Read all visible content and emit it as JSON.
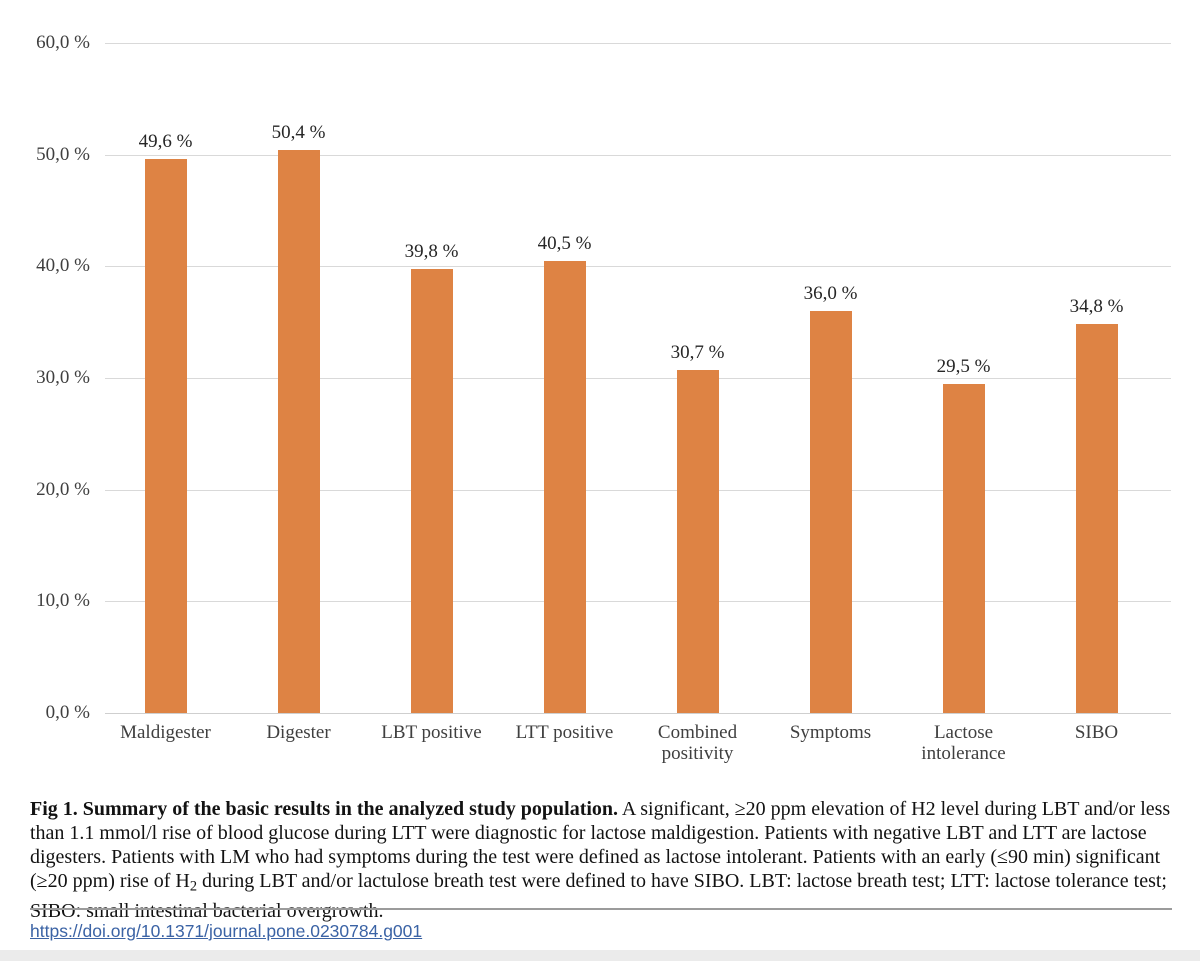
{
  "figure": {
    "caption": {
      "bold_label": "Fig 1. Summary of the basic results in the analyzed study population.",
      "text_before_sub": " A significant, ≥20 ppm elevation of H2 level during LBT and/or less than 1.1 mmol/l rise of blood glucose during LTT were diagnostic for lactose maldigestion. Patients with negative LBT and LTT are lactose digesters. Patients with LM who had symptoms during the test were defined as lactose intolerant. Patients with an early (≤90 min) significant (≥20 ppm) rise of H",
      "subscript": "2",
      "text_after_sub": " during LBT and/or lactulose breath test were defined to have SIBO. LBT: lactose breath test; LTT: lactose tolerance test; SIBO: small intestinal bacterial overgrowth."
    },
    "doi_link": "https://doi.org/10.1371/journal.pone.0230784.g001"
  },
  "chart_data": {
    "type": "bar",
    "title": "",
    "xlabel": "",
    "ylabel": "",
    "categories": [
      "Maldigester",
      "Digester",
      "LBT positive",
      "LTT positive",
      "Combined positivity",
      "Symptoms",
      "Lactose intolerance",
      "SIBO"
    ],
    "values": [
      49.6,
      50.4,
      39.8,
      40.5,
      30.7,
      36.0,
      29.5,
      34.8
    ],
    "value_labels": [
      "49,6 %",
      "50,4 %",
      "39,8 %",
      "40,5 %",
      "30,7 %",
      "36,0 %",
      "29,5 %",
      "34,8 %"
    ],
    "y_ticks": [
      0,
      10,
      20,
      30,
      40,
      50,
      60
    ],
    "y_tick_labels": [
      "0,0 %",
      "10,0 %",
      "20,0 %",
      "30,0 %",
      "40,0 %",
      "50,0 %",
      "60,0 %"
    ],
    "ylim": [
      0,
      60
    ],
    "grid": "horizontal",
    "legend": "none",
    "bar_color": "#de8344",
    "gridline_color": "#d9d9d9"
  }
}
